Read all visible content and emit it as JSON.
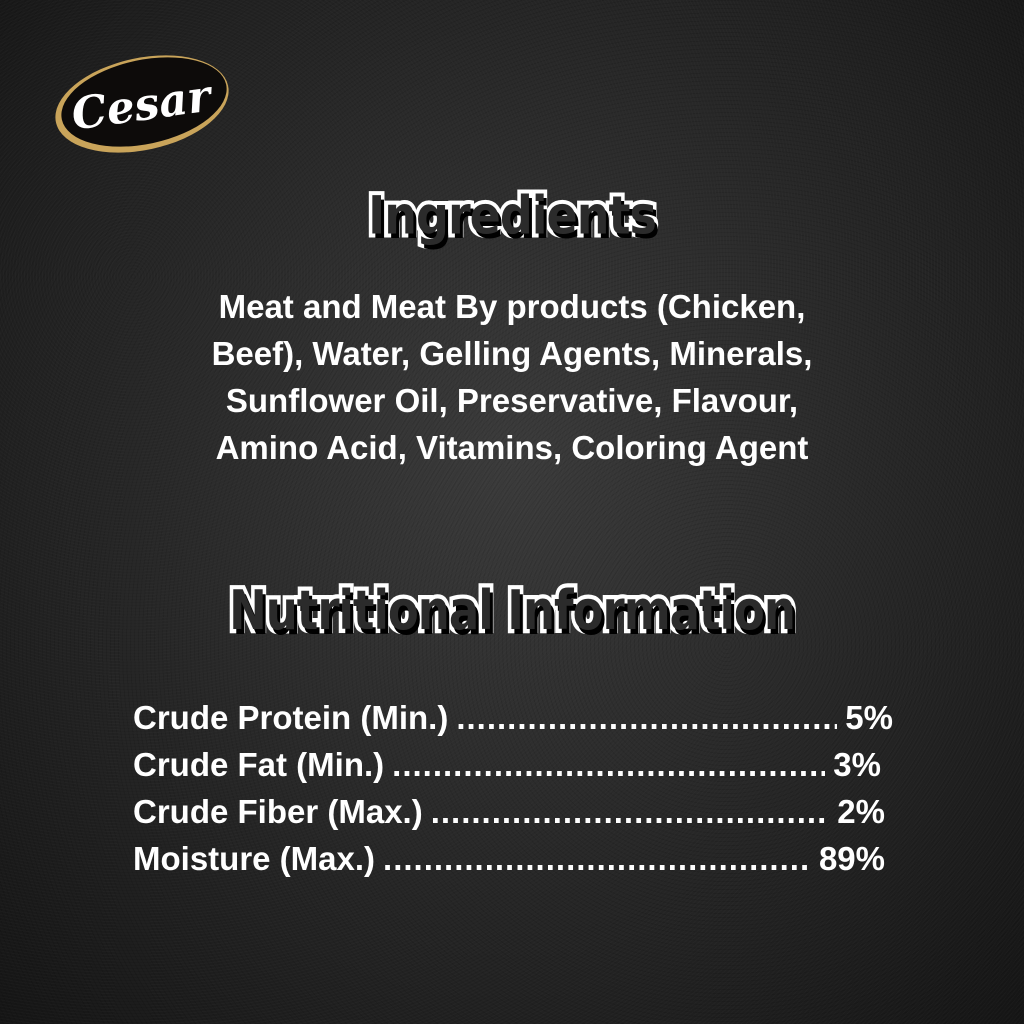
{
  "logo": {
    "text": "Cesar",
    "colors": {
      "oval": "#0d0b0a",
      "ring": "#c9a45a",
      "text": "#ffffff"
    }
  },
  "ingredients": {
    "heading": "Ingredients",
    "lines": [
      "Meat and Meat By products (Chicken,",
      "Beef), Water, Gelling Agents, Minerals,",
      "Sunflower Oil, Preservative, Flavour,",
      "Amino Acid, Vitamins, Coloring Agent"
    ]
  },
  "nutrition": {
    "heading": "Nutritional Information",
    "rows": [
      {
        "label": "Crude Protein (Min.)",
        "value": "5%"
      },
      {
        "label": "Crude Fat (Min.)",
        "value": "3%"
      },
      {
        "label": "Crude Fiber (Max.)",
        "value": "2%"
      },
      {
        "label": "Moisture (Max.)",
        "value": "89%"
      }
    ]
  }
}
